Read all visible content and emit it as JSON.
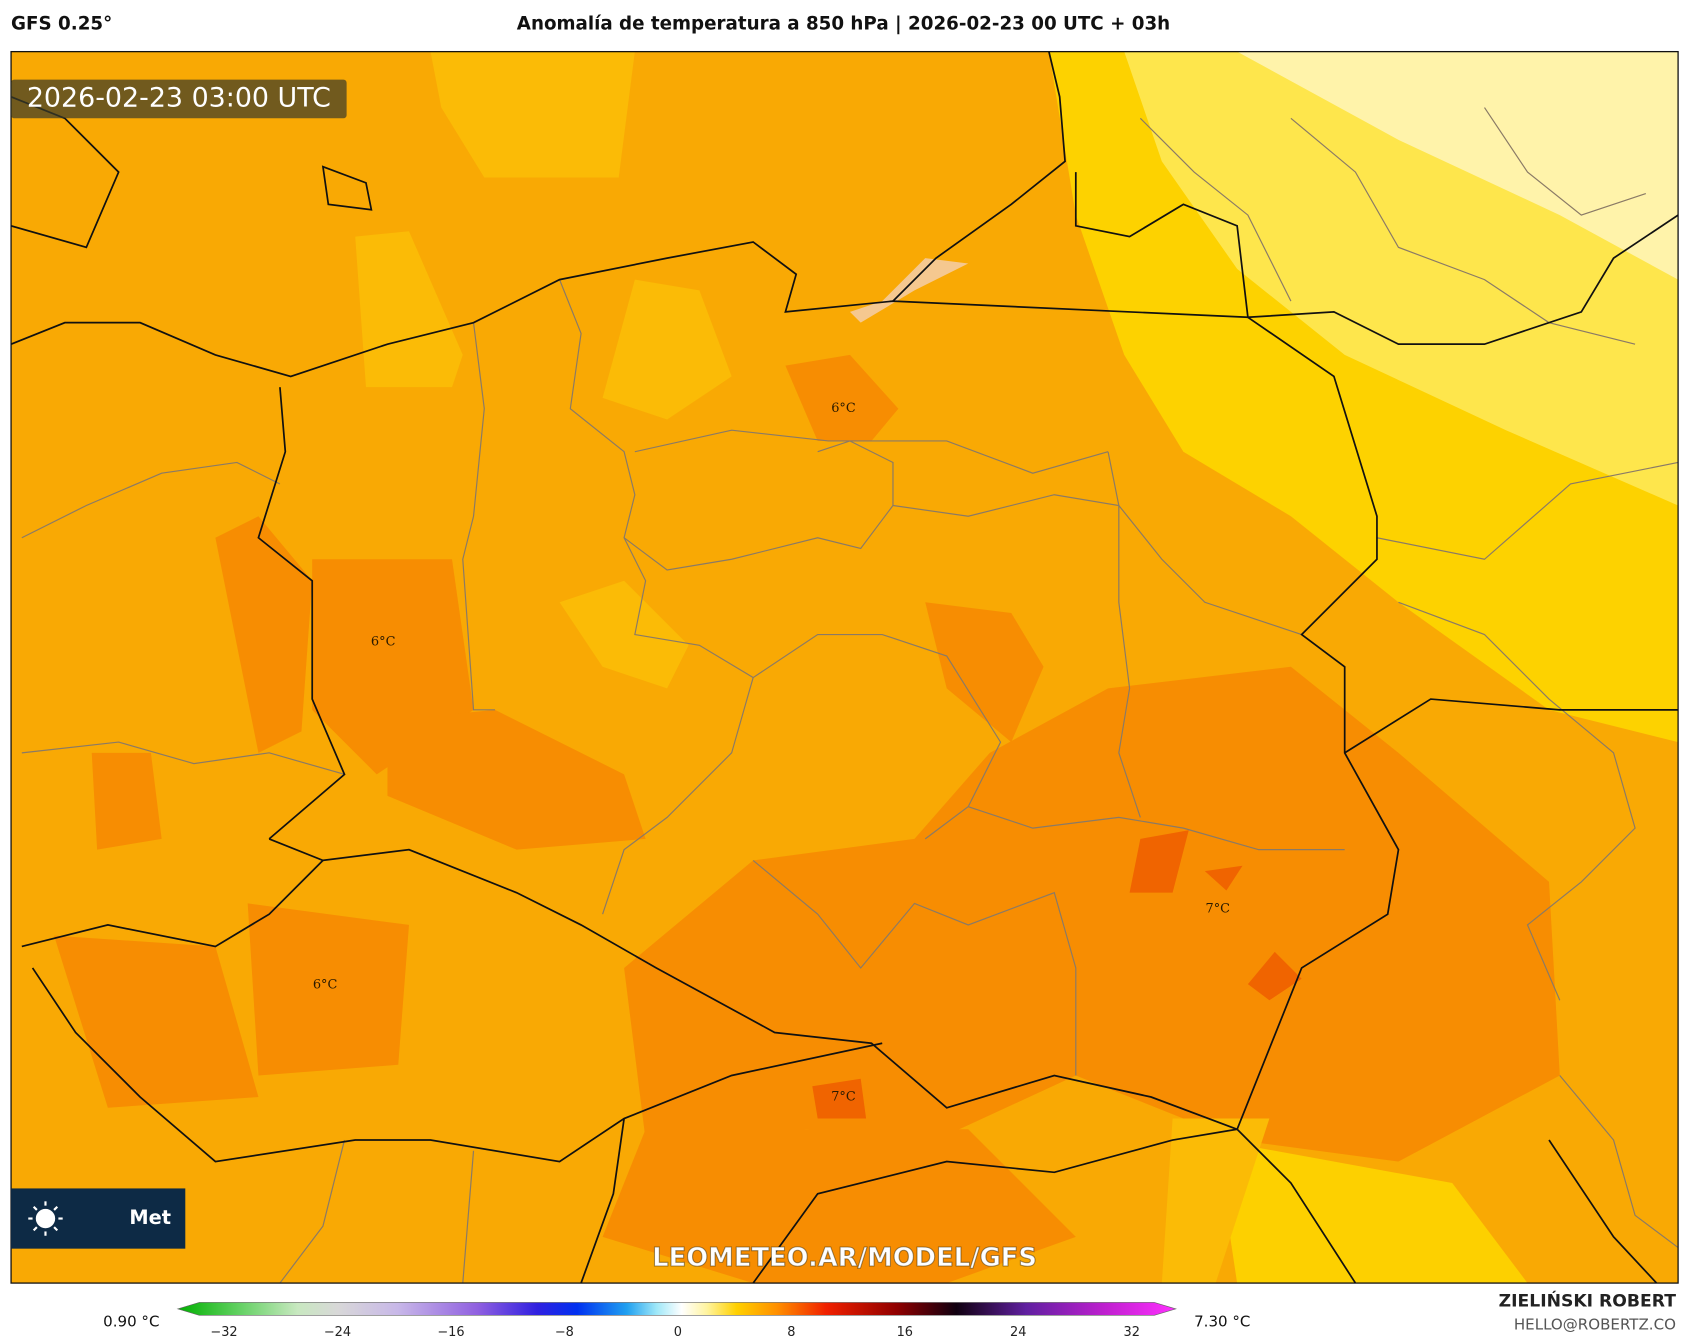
{
  "header": {
    "model": "GFS 0.25°",
    "title": "Anomalía de temperatura a 850 hPa | 2026-02-23 00 UTC + 03h"
  },
  "map": {
    "timestamp": "2026-02-23 03:00 UTC",
    "watermark": "LEOMETEO.AR/MODEL/GFS",
    "logo": "Met",
    "contour_labels": [
      "6°C",
      "6°C",
      "6°C",
      "7°C",
      "7°C"
    ]
  },
  "colorbar": {
    "min_label": "0.90 °C",
    "max_label": "7.30 °C",
    "ticks": [
      "−32",
      "−24",
      "−16",
      "−8",
      "0",
      "8",
      "16",
      "24",
      "32"
    ]
  },
  "footer": {
    "author": "ZIELIŃSKI ROBERT",
    "email": "HELLO@ROBERTZ.CO"
  }
}
